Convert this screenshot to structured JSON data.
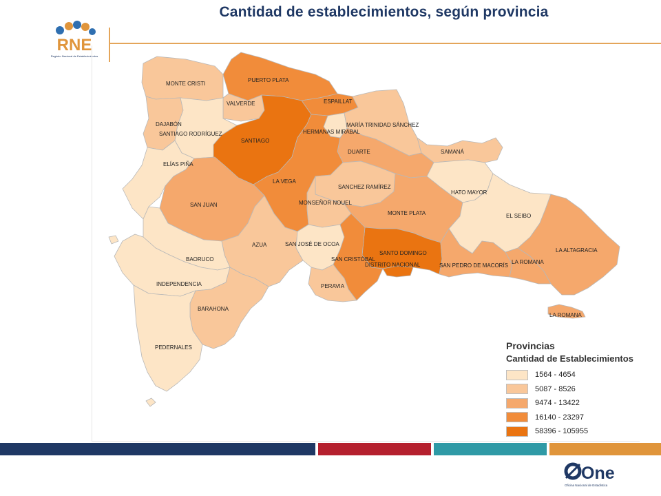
{
  "header": {
    "title": "Cantidad de establecimientos, según provincia"
  },
  "logos": {
    "rne_text": "RNE",
    "rne_caption": "Registro Nacional de Establecimientos",
    "one_text": "One",
    "one_caption": "Oficina Nacional de Estadística"
  },
  "legend": {
    "title": "Provincias",
    "subtitle": "Cantidad de Establecimientos",
    "classes": [
      {
        "range": "1564 - 4654",
        "color": "#fde5c6"
      },
      {
        "range": "5087 - 8526",
        "color": "#f9c79a"
      },
      {
        "range": "9474 - 13422",
        "color": "#f5a86c"
      },
      {
        "range": "16140 - 23297",
        "color": "#f18c3a"
      },
      {
        "range": "58396 - 105955",
        "color": "#ea7411"
      }
    ]
  },
  "provinces": [
    {
      "name": "MONTE CRISTI",
      "class": 1
    },
    {
      "name": "PUERTO PLATA",
      "class": 3
    },
    {
      "name": "VALVERDE",
      "class": 1
    },
    {
      "name": "ESPAILLAT",
      "class": 3
    },
    {
      "name": "DAJABÓN",
      "class": 1
    },
    {
      "name": "SANTIAGO RODRÍGUEZ",
      "class": 0
    },
    {
      "name": "HERMANAS MIRABAL",
      "class": 0
    },
    {
      "name": "MARÍA TRINIDAD SÁNCHEZ",
      "class": 1
    },
    {
      "name": "SANTIAGO",
      "class": 4
    },
    {
      "name": "SAMANÁ",
      "class": 1
    },
    {
      "name": "DUARTE",
      "class": 2
    },
    {
      "name": "ELÍAS PIÑA",
      "class": 0
    },
    {
      "name": "LA VEGA",
      "class": 3
    },
    {
      "name": "SANCHEZ RAMÍREZ",
      "class": 1
    },
    {
      "name": "HATO MAYOR",
      "class": 0
    },
    {
      "name": "SAN JUAN",
      "class": 2
    },
    {
      "name": "MONSEÑOR NOUEL",
      "class": 1
    },
    {
      "name": "MONTE PLATA",
      "class": 2
    },
    {
      "name": "EL SEIBO",
      "class": 0
    },
    {
      "name": "AZUA",
      "class": 1
    },
    {
      "name": "SAN JOSÉ DE OCOA",
      "class": 0
    },
    {
      "name": "SANTO DOMINGO",
      "class": 4
    },
    {
      "name": "LA ALTAGRACIA",
      "class": 2
    },
    {
      "name": "BAORUCO",
      "class": 0
    },
    {
      "name": "SAN CRISTÓBAL",
      "class": 3
    },
    {
      "name": "DISTRITO NACIONAL",
      "class": 4
    },
    {
      "name": "SAN PEDRO DE MACORÍS",
      "class": 2
    },
    {
      "name": "LA ROMANA",
      "class": 2
    },
    {
      "name": "INDEPENDENCIA",
      "class": 0
    },
    {
      "name": "PERAVIA",
      "class": 1
    },
    {
      "name": "BARAHONA",
      "class": 1
    },
    {
      "name": "LA ROMANA",
      "class": 2
    },
    {
      "name": "PEDERNALES",
      "class": 0
    }
  ],
  "colors": {
    "title": "#1f3864",
    "accent_line": "#e4a55a",
    "stripe_navy": "#1f3864",
    "stripe_red": "#b5202e",
    "stripe_teal": "#2f9aa6",
    "stripe_orange": "#e0953b",
    "border": "#b8b8b8"
  }
}
